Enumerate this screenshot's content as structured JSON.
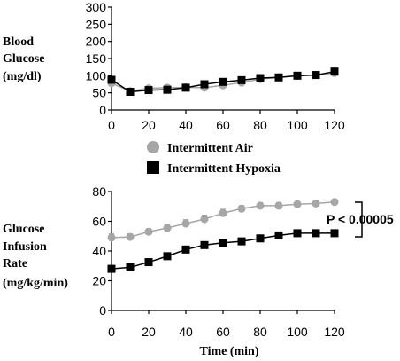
{
  "legend": {
    "items": [
      {
        "label": "Intermittent Air",
        "color": "#a6a6a6",
        "marker": "circle"
      },
      {
        "label": "Intermittent Hypoxia",
        "color": "#000000",
        "marker": "square"
      }
    ]
  },
  "annotation": {
    "text": "P < 0.00005"
  },
  "chart_data": [
    {
      "type": "line",
      "title": "",
      "ylabel": "Blood Glucose (mg/dl)",
      "ylabel_lines": [
        "Blood",
        "Glucose",
        "(mg/dl)"
      ],
      "xlabel": "",
      "xlim": [
        0,
        120
      ],
      "ylim": [
        0,
        300
      ],
      "xticks": [
        0,
        20,
        40,
        60,
        80,
        100,
        120
      ],
      "yticks": [
        0,
        50,
        100,
        150,
        200,
        250,
        300
      ],
      "grid": false,
      "x": [
        0,
        10,
        20,
        30,
        40,
        50,
        60,
        70,
        80,
        90,
        100,
        110,
        120
      ],
      "series": [
        {
          "name": "Intermittent Air",
          "color": "#a6a6a6",
          "marker": "circle",
          "values": [
            78,
            55,
            63,
            65,
            66,
            65,
            72,
            80,
            90,
            95,
            100,
            102,
            108
          ],
          "errors": [
            5,
            4,
            4,
            4,
            4,
            4,
            4,
            4,
            4,
            4,
            4,
            4,
            5
          ]
        },
        {
          "name": "Intermittent Hypoxia",
          "color": "#000000",
          "marker": "square",
          "values": [
            88,
            53,
            58,
            59,
            65,
            75,
            82,
            87,
            93,
            95,
            100,
            102,
            112
          ],
          "errors": [
            5,
            4,
            4,
            4,
            4,
            4,
            4,
            4,
            4,
            4,
            4,
            4,
            5
          ]
        }
      ]
    },
    {
      "type": "line",
      "title": "",
      "ylabel": "Glucose Infusion Rate (mg/kg/min)",
      "ylabel_lines": [
        "Glucose",
        "Infusion",
        "Rate",
        "(mg/kg/min)"
      ],
      "xlabel": "Time (min)",
      "xlim": [
        0,
        120
      ],
      "ylim": [
        0,
        80
      ],
      "xticks": [
        0,
        20,
        40,
        60,
        80,
        100,
        120
      ],
      "yticks": [
        0,
        20,
        40,
        60,
        80
      ],
      "grid": false,
      "x": [
        0,
        10,
        20,
        30,
        40,
        50,
        60,
        70,
        80,
        90,
        100,
        110,
        120
      ],
      "series": [
        {
          "name": "Intermittent Air",
          "color": "#a6a6a6",
          "marker": "circle",
          "values": [
            49,
            49.5,
            53,
            55.5,
            58.5,
            61.5,
            65.5,
            68.5,
            70.5,
            70.5,
            71.5,
            72,
            73
          ],
          "errors": [
            2.5,
            2,
            2,
            2,
            2.5,
            2.5,
            2.5,
            2,
            2,
            2,
            1.5,
            1.5,
            1.5
          ]
        },
        {
          "name": "Intermittent Hypoxia",
          "color": "#000000",
          "marker": "square",
          "values": [
            28,
            29,
            32.5,
            36.5,
            41,
            44,
            45.5,
            46.5,
            48.5,
            50.5,
            52,
            52,
            52
          ],
          "errors": [
            2,
            2,
            2,
            2,
            2,
            2,
            2,
            2,
            1.5,
            1.5,
            1.5,
            1.5,
            1.5
          ]
        }
      ]
    }
  ]
}
